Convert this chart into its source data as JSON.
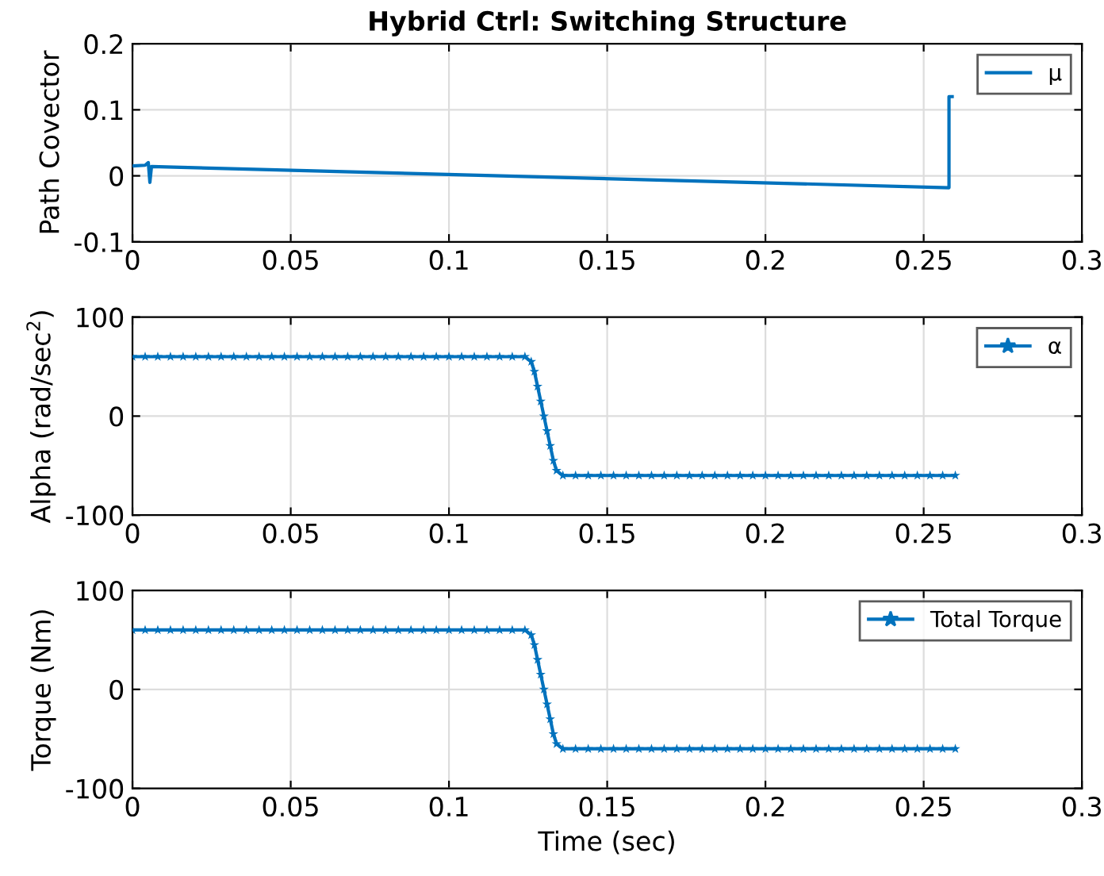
{
  "chart_data": [
    {
      "type": "line",
      "title": "Hybrid Ctrl: Switching Structure",
      "ylabel": "Path Covector",
      "xlim": [
        0,
        0.3
      ],
      "ylim": [
        -0.1,
        0.2
      ],
      "xticks": [
        0,
        0.05,
        0.1,
        0.15,
        0.2,
        0.25,
        0.3
      ],
      "yticks": [
        -0.1,
        0,
        0.1,
        0.2
      ],
      "grid": true,
      "legend": "top right",
      "marker": "none",
      "series": [
        {
          "name": "μ",
          "color": "#0072bd",
          "x": [
            0,
            0.004,
            0.005,
            0.0055,
            0.006,
            0.258,
            0.258,
            0.259
          ],
          "values": [
            0.015,
            0.016,
            0.02,
            -0.01,
            0.014,
            -0.018,
            0.12,
            0.12
          ]
        }
      ]
    },
    {
      "type": "line",
      "ylabel": "Alpha (rad/sec$^{2}$)",
      "xlim": [
        0,
        0.3
      ],
      "ylim": [
        -100,
        100
      ],
      "xticks": [
        0,
        0.05,
        0.1,
        0.15,
        0.2,
        0.25,
        0.3
      ],
      "yticks": [
        -100,
        0,
        100
      ],
      "grid": true,
      "legend": "top right",
      "marker": "star",
      "series": [
        {
          "name": "α",
          "color": "#0072bd",
          "x": [
            0,
            0.004,
            0.008,
            0.012,
            0.016,
            0.02,
            0.024,
            0.028,
            0.032,
            0.036,
            0.04,
            0.044,
            0.048,
            0.052,
            0.056,
            0.06,
            0.064,
            0.068,
            0.072,
            0.076,
            0.08,
            0.084,
            0.088,
            0.092,
            0.096,
            0.1,
            0.104,
            0.108,
            0.112,
            0.116,
            0.12,
            0.124,
            0.126,
            0.127,
            0.128,
            0.129,
            0.13,
            0.131,
            0.132,
            0.133,
            0.134,
            0.136,
            0.14,
            0.144,
            0.148,
            0.152,
            0.156,
            0.16,
            0.164,
            0.168,
            0.172,
            0.176,
            0.18,
            0.184,
            0.188,
            0.192,
            0.196,
            0.2,
            0.204,
            0.208,
            0.212,
            0.216,
            0.22,
            0.224,
            0.228,
            0.232,
            0.236,
            0.24,
            0.244,
            0.248,
            0.252,
            0.256,
            0.26
          ],
          "values": [
            60,
            60,
            60,
            60,
            60,
            60,
            60,
            60,
            60,
            60,
            60,
            60,
            60,
            60,
            60,
            60,
            60,
            60,
            60,
            60,
            60,
            60,
            60,
            60,
            60,
            60,
            60,
            60,
            60,
            60,
            60,
            60,
            55,
            45,
            30,
            15,
            0,
            -15,
            -30,
            -45,
            -55,
            -60,
            -60,
            -60,
            -60,
            -60,
            -60,
            -60,
            -60,
            -60,
            -60,
            -60,
            -60,
            -60,
            -60,
            -60,
            -60,
            -60,
            -60,
            -60,
            -60,
            -60,
            -60,
            -60,
            -60,
            -60,
            -60,
            -60,
            -60,
            -60,
            -60,
            -60,
            -60
          ]
        }
      ]
    },
    {
      "type": "line",
      "xlabel": "Time (sec)",
      "ylabel": "Torque (Nm)",
      "xlim": [
        0,
        0.3
      ],
      "ylim": [
        -100,
        100
      ],
      "xticks": [
        0,
        0.05,
        0.1,
        0.15,
        0.2,
        0.25,
        0.3
      ],
      "yticks": [
        -100,
        0,
        100
      ],
      "grid": true,
      "legend": "top right",
      "marker": "star",
      "series": [
        {
          "name": "Total Torque",
          "color": "#0072bd",
          "x": [
            0,
            0.004,
            0.008,
            0.012,
            0.016,
            0.02,
            0.024,
            0.028,
            0.032,
            0.036,
            0.04,
            0.044,
            0.048,
            0.052,
            0.056,
            0.06,
            0.064,
            0.068,
            0.072,
            0.076,
            0.08,
            0.084,
            0.088,
            0.092,
            0.096,
            0.1,
            0.104,
            0.108,
            0.112,
            0.116,
            0.12,
            0.124,
            0.126,
            0.127,
            0.128,
            0.129,
            0.13,
            0.131,
            0.132,
            0.133,
            0.134,
            0.136,
            0.14,
            0.144,
            0.148,
            0.152,
            0.156,
            0.16,
            0.164,
            0.168,
            0.172,
            0.176,
            0.18,
            0.184,
            0.188,
            0.192,
            0.196,
            0.2,
            0.204,
            0.208,
            0.212,
            0.216,
            0.22,
            0.224,
            0.228,
            0.232,
            0.236,
            0.24,
            0.244,
            0.248,
            0.252,
            0.256,
            0.26
          ],
          "values": [
            60,
            60,
            60,
            60,
            60,
            60,
            60,
            60,
            60,
            60,
            60,
            60,
            60,
            60,
            60,
            60,
            60,
            60,
            60,
            60,
            60,
            60,
            60,
            60,
            60,
            60,
            60,
            60,
            60,
            60,
            60,
            60,
            55,
            45,
            30,
            15,
            0,
            -15,
            -30,
            -45,
            -55,
            -60,
            -60,
            -60,
            -60,
            -60,
            -60,
            -60,
            -60,
            -60,
            -60,
            -60,
            -60,
            -60,
            -60,
            -60,
            -60,
            -60,
            -60,
            -60,
            -60,
            -60,
            -60,
            -60,
            -60,
            -60,
            -60,
            -60,
            -60,
            -60,
            -60,
            -60,
            -60
          ]
        }
      ]
    }
  ]
}
